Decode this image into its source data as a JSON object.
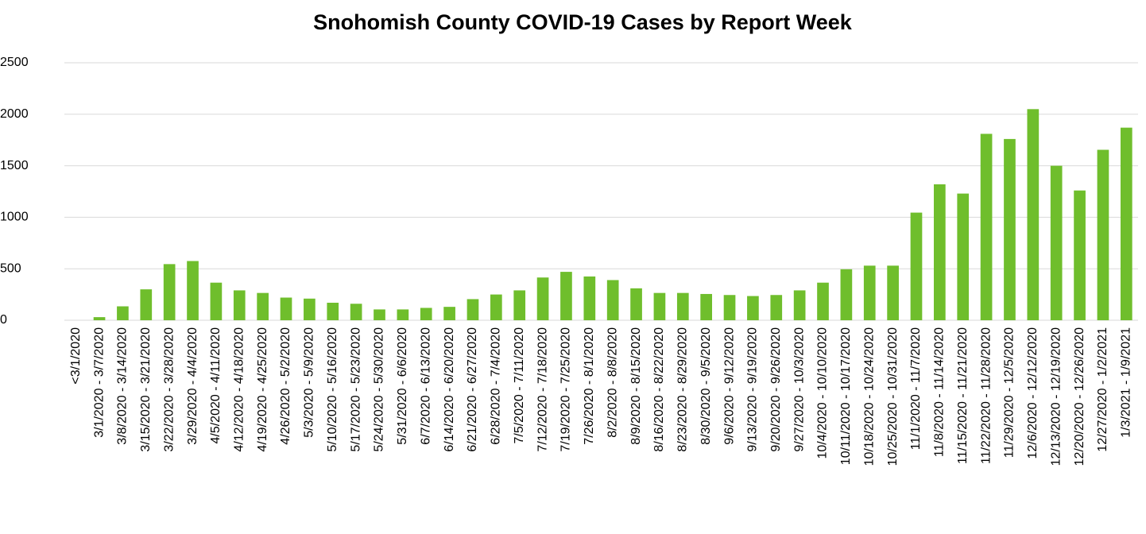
{
  "chart_data": {
    "type": "bar",
    "title": "Snohomish County COVID-19 Cases by Report Week",
    "categories": [
      "<3/1/2020",
      "3/1/2020 - 3/7/2020",
      "3/8/2020 - 3/14/2020",
      "3/15/2020 - 3/21/2020",
      "3/22/2020 - 3/28/2020",
      "3/29/2020 - 4/4/2020",
      "4/5/2020 - 4/11/2020",
      "4/12/2020 - 4/18/2020",
      "4/19/2020 - 4/25/2020",
      "4/26/2020 - 5/2/2020",
      "5/3/2020 - 5/9/2020",
      "5/10/2020 - 5/16/2020",
      "5/17/2020 - 5/23/2020",
      "5/24/2020 - 5/30/2020",
      "5/31/2020 - 6/6/2020",
      "6/7/2020 - 6/13/2020",
      "6/14/2020 - 6/20/2020",
      "6/21/2020 - 6/27/2020",
      "6/28/2020 - 7/4/2020",
      "7/5/2020 - 7/11/2020",
      "7/12/2020 - 7/18/2020",
      "7/19/2020 - 7/25/2020",
      "7/26/2020 - 8/1/2020",
      "8/2/2020 - 8/8/2020",
      "8/9/2020 - 8/15/2020",
      "8/16/2020 - 8/22/2020",
      "8/23/2020 - 8/29/2020",
      "8/30/2020 - 9/5/2020",
      "9/6/2020 - 9/12/2020",
      "9/13/2020 - 9/19/2020",
      "9/20/2020 - 9/26/2020",
      "9/27/2020 - 10/3/2020",
      "10/4/2020 - 10/10/2020",
      "10/11/2020 - 10/17/2020",
      "10/18/2020 - 10/24/2020",
      "10/25/2020 - 10/31/2020",
      "11/1/2020 - 11/7/2020",
      "11/8/2020 - 11/14/2020",
      "11/15/2020 - 11/21/2020",
      "11/22/2020 - 11/28/2020",
      "11/29/2020 - 12/5/2020",
      "12/6/2020 - 12/12/2020",
      "12/13/2020 - 12/19/2020",
      "12/20/2020 - 12/26/2020",
      "12/27/2020 - 1/2/2021",
      "1/3/2021 - 1/9/2021"
    ],
    "values": [
      0,
      30,
      135,
      300,
      545,
      575,
      365,
      290,
      265,
      220,
      210,
      170,
      160,
      105,
      105,
      120,
      130,
      205,
      250,
      290,
      415,
      470,
      425,
      390,
      310,
      265,
      265,
      255,
      245,
      235,
      245,
      290,
      365,
      495,
      530,
      530,
      1045,
      1320,
      1230,
      1810,
      1760,
      2050,
      1500,
      1260,
      1655,
      1870
    ],
    "color": "#6fbe2c",
    "ylim": [
      0,
      2500
    ],
    "yticks": [
      0,
      500,
      1000,
      1500,
      2000,
      2500
    ],
    "grid": true
  }
}
